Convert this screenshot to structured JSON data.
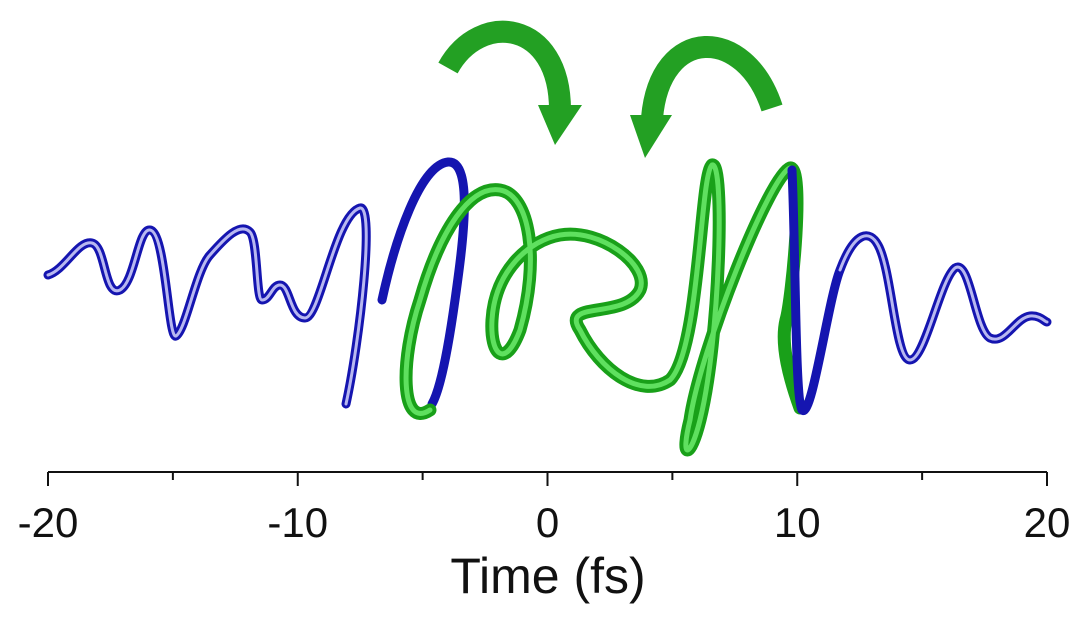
{
  "chart_data": {
    "type": "line",
    "xlabel": "Time (fs)",
    "xlim": [
      -20,
      20
    ],
    "xticks": [
      -20,
      -10,
      0,
      10,
      20
    ],
    "xminor_ticks": [
      -15,
      -5,
      5,
      15
    ]
  }
}
